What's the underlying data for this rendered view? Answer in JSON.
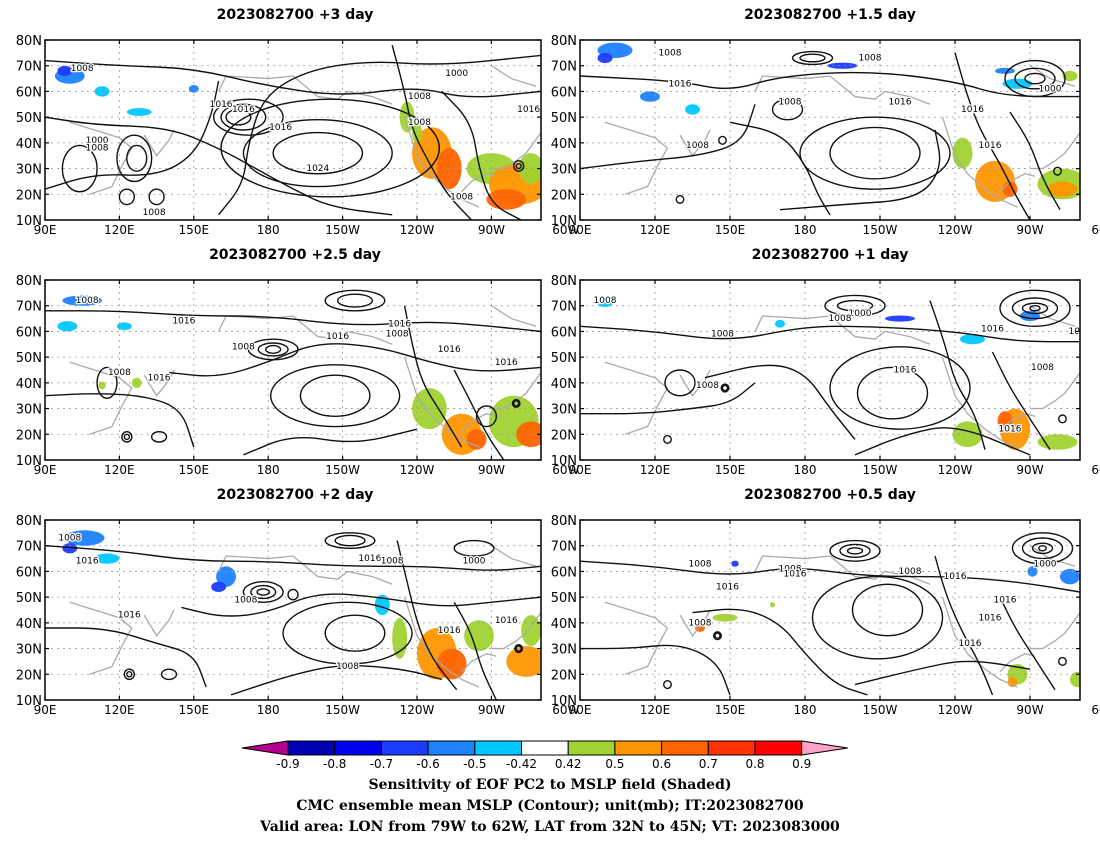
{
  "panels": [
    {
      "title": "2023082700  +3 day"
    },
    {
      "title": "2023082700  +1.5 day"
    },
    {
      "title": "2023082700  +2.5 day"
    },
    {
      "title": "2023082700  +1 day"
    },
    {
      "title": "2023082700  +2 day"
    },
    {
      "title": "2023082700  +0.5 day"
    }
  ],
  "axes": {
    "lat_ticks": [
      "80N",
      "70N",
      "60N",
      "50N",
      "40N",
      "30N",
      "20N",
      "10N"
    ],
    "lon_ticks": [
      "90E",
      "120E",
      "150E",
      "180",
      "150W",
      "120W",
      "90W",
      "60W"
    ],
    "lat_range": [
      10,
      80
    ],
    "lon_range_east": [
      90,
      290
    ]
  },
  "isobar_labels": [
    [
      "1008",
      "1000",
      "1008",
      "1016",
      "1016",
      "1008",
      "1016",
      "1000",
      "1008",
      "1024",
      "1008",
      "1008",
      "1016"
    ],
    [
      "1008",
      "1000",
      "1016",
      "1008",
      "1016",
      "1016",
      "1008",
      "1016",
      "1008"
    ],
    [
      "1008",
      "1016",
      "1008",
      "1016",
      "1016",
      "1008",
      "1016",
      "1008",
      "1016",
      "1016"
    ],
    [
      "1008",
      "1016",
      "1000",
      "1008",
      "1000",
      "1016",
      "1016",
      "1008",
      "1008",
      "1016",
      "1008"
    ],
    [
      "1008",
      "1016",
      "1016",
      "1008",
      "1000",
      "1008",
      "1016",
      "1016",
      "1008",
      "1016"
    ],
    [
      "1008",
      "1008",
      "1016",
      "1008",
      "1016",
      "1000",
      "1016",
      "1016",
      "1008",
      "1016",
      "1016"
    ]
  ],
  "colorbar": {
    "labels": [
      "-0.9",
      "-0.8",
      "-0.7",
      "-0.6",
      "-0.5",
      "-0.42",
      "0.42",
      "0.5",
      "0.6",
      "0.7",
      "0.8",
      "0.9"
    ],
    "colors": [
      "#0000b4",
      "#0000f0",
      "#1e3cff",
      "#1e82ff",
      "#00c8ff",
      "#ffffff",
      "#a0d232",
      "#ff9600",
      "#ff6400",
      "#ff3200",
      "#ff0000"
    ],
    "low_extend_color": "#b4008c",
    "high_extend_color": "#ffa0c8"
  },
  "caption": {
    "line1": "Sensitivity of EOF PC2 to MSLP field (Shaded)",
    "line2": "CMC ensemble mean MSLP (Contour); unit(mb); IT:2023082700",
    "line3": "Valid area: LON from 79W to 62W, LAT from 32N to 45N; VT: 2023083000"
  }
}
